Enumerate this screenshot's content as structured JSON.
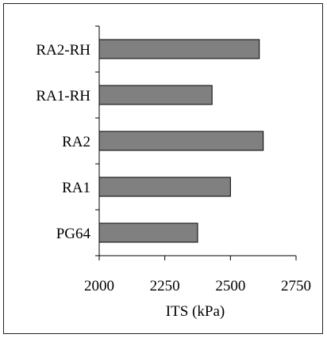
{
  "chart_data": {
    "type": "bar",
    "orientation": "horizontal",
    "categories": [
      "RA2-RH",
      "RA1-RH",
      "RA2",
      "RA1",
      "PG64"
    ],
    "values": [
      2610,
      2430,
      2625,
      2500,
      2375
    ],
    "xlabel": "ITS (kPa)",
    "xlim": [
      2000,
      2750
    ],
    "xticks": [
      2000,
      2250,
      2500,
      2750
    ],
    "bar_color": "#808080",
    "grid": false,
    "legend": "none"
  }
}
